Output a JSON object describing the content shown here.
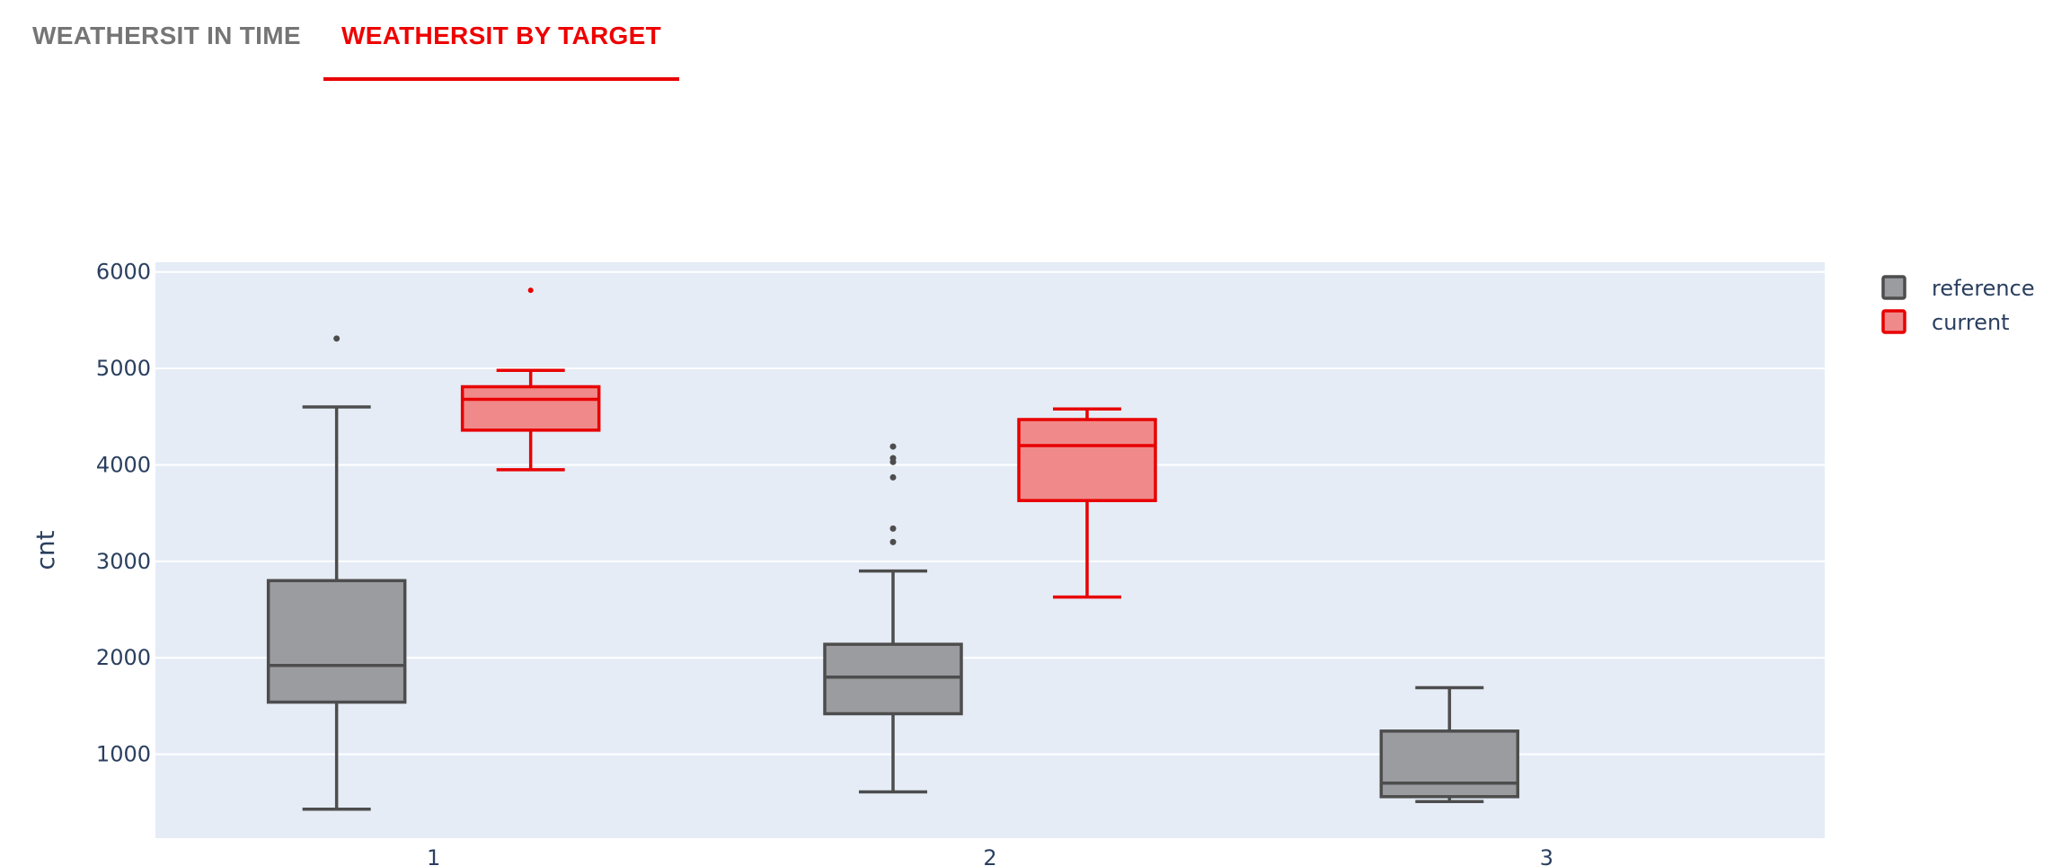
{
  "tabs": [
    {
      "label": "WEATHERSIT IN TIME",
      "active": false
    },
    {
      "label": "WEATHERSIT BY TARGET",
      "active": true
    }
  ],
  "colors": {
    "reference_fill": "#9a9ca0",
    "reference_line": "#4d4d4d",
    "current_fill": "#f08a8a",
    "current_line": "#e80000",
    "plot_bg": "#e5ecf6",
    "active_tab": "#e80000",
    "inactive_tab": "#757575"
  },
  "chart_data": {
    "type": "box",
    "title": "",
    "xlabel": "",
    "ylabel": "cnt",
    "categories": [
      "1",
      "2",
      "3"
    ],
    "yticks": [
      1000,
      2000,
      3000,
      4000,
      5000,
      6000
    ],
    "ylim": [
      130,
      6100
    ],
    "grid": true,
    "legend_position": "top-right",
    "series": [
      {
        "name": "reference",
        "boxes": [
          {
            "category": "1",
            "min": 430,
            "q1": 1540,
            "median": 1920,
            "q3": 2800,
            "max": 4600,
            "outliers": [
              5310
            ]
          },
          {
            "category": "2",
            "min": 610,
            "q1": 1420,
            "median": 1800,
            "q3": 2140,
            "max": 2900,
            "outliers": [
              3200,
              3340,
              3870,
              4030,
              4070,
              4190
            ]
          },
          {
            "category": "3",
            "min": 510,
            "q1": 560,
            "median": 700,
            "q3": 1240,
            "max": 1690,
            "outliers": []
          }
        ]
      },
      {
        "name": "current",
        "boxes": [
          {
            "category": "1",
            "min": 3950,
            "q1": 4360,
            "median": 4680,
            "q3": 4810,
            "max": 4980,
            "outliers": [
              5810
            ]
          },
          {
            "category": "2",
            "min": 2630,
            "q1": 3630,
            "median": 4200,
            "q3": 4470,
            "max": 4580,
            "outliers": []
          }
        ]
      }
    ]
  }
}
